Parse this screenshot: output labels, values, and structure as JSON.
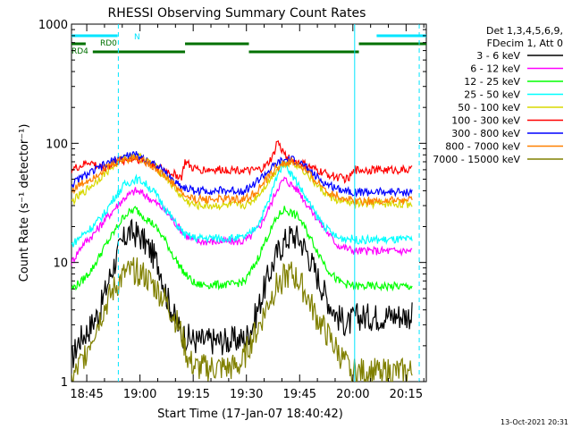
{
  "chart_data": {
    "type": "line",
    "title": "RHESSI Observing Summary Count Rates",
    "xlabel": "Start Time (17-Jan-07 18:40:42)",
    "ylabel": "Count Rate (s⁻¹ detector⁻¹)",
    "yscale": "log",
    "ylim": [
      1,
      1000
    ],
    "xlim_minutes": [
      0,
      100
    ],
    "x_tick_labels": [
      "18:45",
      "19:00",
      "19:15",
      "19:30",
      "19:45",
      "20:00",
      "20:15"
    ],
    "x_tick_minutes": [
      4.3,
      19.3,
      34.3,
      49.3,
      64.3,
      79.3,
      94.3
    ],
    "y_tick_labels": [
      "1",
      "10",
      "100",
      "1000"
    ],
    "y_tick_values": [
      1,
      10,
      100,
      1000
    ],
    "legend_header": [
      "Det 1,3,4,5,6,9,",
      "FDecim 1, Att 0"
    ],
    "legend_position": "right",
    "timestamp": "13-Oct-2021 20:31",
    "bar_labels": [
      "N",
      "RD0",
      "RD4"
    ],
    "bars": [
      {
        "label": "N",
        "color": "#00e5ff",
        "segments": [
          [
            0,
            13
          ],
          [
            86,
            100
          ]
        ]
      },
      {
        "label": "RD0",
        "color": "#007000",
        "segments": [
          [
            0,
            4
          ],
          [
            32,
            50
          ],
          [
            81,
            100
          ]
        ]
      },
      {
        "label": "RD4",
        "color": "#007000",
        "segments": [
          [
            6,
            32
          ],
          [
            50,
            81
          ]
        ]
      }
    ],
    "vlines_minutes": [
      13.2,
      79.8,
      98.0
    ],
    "series": [
      {
        "name": "3 - 6 keV",
        "color": "#000000",
        "points": [
          [
            0,
            1.5
          ],
          [
            2,
            2.2
          ],
          [
            5,
            2.8
          ],
          [
            8,
            4
          ],
          [
            11,
            8
          ],
          [
            14,
            14
          ],
          [
            16,
            18
          ],
          [
            19,
            17
          ],
          [
            22,
            13
          ],
          [
            25,
            9
          ],
          [
            27,
            5
          ],
          [
            29,
            3.5
          ],
          [
            31,
            2.5
          ],
          [
            35,
            2.2
          ],
          [
            40,
            2.2
          ],
          [
            45,
            2.2
          ],
          [
            49,
            2.3
          ],
          [
            51,
            3
          ],
          [
            53,
            4.5
          ],
          [
            55,
            7
          ],
          [
            58,
            12
          ],
          [
            60,
            15
          ],
          [
            62,
            17
          ],
          [
            64,
            16
          ],
          [
            66,
            13
          ],
          [
            69,
            8
          ],
          [
            72,
            5
          ],
          [
            75,
            3.5
          ],
          [
            78,
            3
          ],
          [
            80,
            3.5
          ],
          [
            85,
            3.5
          ],
          [
            90,
            3.6
          ],
          [
            96,
            3.6
          ]
        ]
      },
      {
        "name": "6 - 12 keV",
        "color": "#ff00ff",
        "points": [
          [
            0,
            10
          ],
          [
            3,
            14
          ],
          [
            6,
            17
          ],
          [
            9,
            22
          ],
          [
            12,
            28
          ],
          [
            15,
            35
          ],
          [
            18,
            40
          ],
          [
            20,
            38
          ],
          [
            23,
            33
          ],
          [
            26,
            28
          ],
          [
            29,
            22
          ],
          [
            32,
            17
          ],
          [
            35,
            15
          ],
          [
            40,
            15
          ],
          [
            45,
            15
          ],
          [
            48,
            15
          ],
          [
            50,
            16
          ],
          [
            53,
            20
          ],
          [
            56,
            30
          ],
          [
            58,
            42
          ],
          [
            60,
            50
          ],
          [
            62,
            45
          ],
          [
            64,
            40
          ],
          [
            66,
            32
          ],
          [
            69,
            24
          ],
          [
            72,
            18
          ],
          [
            75,
            14
          ],
          [
            78,
            13
          ],
          [
            80,
            12.5
          ],
          [
            85,
            12.5
          ],
          [
            90,
            12.5
          ],
          [
            96,
            12.5
          ]
        ]
      },
      {
        "name": "12 - 25 keV",
        "color": "#00ff00",
        "points": [
          [
            0,
            6
          ],
          [
            3,
            7
          ],
          [
            6,
            9
          ],
          [
            9,
            13
          ],
          [
            12,
            18
          ],
          [
            15,
            25
          ],
          [
            18,
            28
          ],
          [
            20,
            25
          ],
          [
            23,
            21
          ],
          [
            26,
            16
          ],
          [
            29,
            11
          ],
          [
            32,
            8
          ],
          [
            35,
            6.5
          ],
          [
            40,
            6.5
          ],
          [
            45,
            6.5
          ],
          [
            49,
            7
          ],
          [
            52,
            10
          ],
          [
            55,
            16
          ],
          [
            58,
            24
          ],
          [
            60,
            28
          ],
          [
            62,
            26
          ],
          [
            64,
            24
          ],
          [
            66,
            19
          ],
          [
            69,
            13
          ],
          [
            72,
            9
          ],
          [
            75,
            7
          ],
          [
            78,
            6.5
          ],
          [
            80,
            6.3
          ],
          [
            85,
            6.3
          ],
          [
            90,
            6.3
          ],
          [
            96,
            6.3
          ]
        ]
      },
      {
        "name": "25 - 50 keV",
        "color": "#00ffff",
        "points": [
          [
            0,
            14
          ],
          [
            3,
            17
          ],
          [
            6,
            20
          ],
          [
            9,
            25
          ],
          [
            12,
            35
          ],
          [
            15,
            45
          ],
          [
            18,
            50
          ],
          [
            20,
            48
          ],
          [
            23,
            40
          ],
          [
            26,
            30
          ],
          [
            29,
            22
          ],
          [
            32,
            17
          ],
          [
            35,
            16
          ],
          [
            40,
            16
          ],
          [
            45,
            16
          ],
          [
            48,
            16
          ],
          [
            50,
            17
          ],
          [
            53,
            22
          ],
          [
            56,
            35
          ],
          [
            58,
            55
          ],
          [
            60,
            70
          ],
          [
            62,
            55
          ],
          [
            64,
            45
          ],
          [
            66,
            35
          ],
          [
            69,
            25
          ],
          [
            72,
            19
          ],
          [
            75,
            16
          ],
          [
            78,
            16
          ],
          [
            80,
            15.5
          ],
          [
            85,
            15.5
          ],
          [
            90,
            15.5
          ],
          [
            96,
            15.5
          ]
        ]
      },
      {
        "name": "50 - 100 keV",
        "color": "#d8d800",
        "points": [
          [
            0,
            32
          ],
          [
            3,
            38
          ],
          [
            6,
            45
          ],
          [
            9,
            55
          ],
          [
            12,
            65
          ],
          [
            15,
            75
          ],
          [
            18,
            78
          ],
          [
            20,
            75
          ],
          [
            23,
            65
          ],
          [
            26,
            55
          ],
          [
            29,
            42
          ],
          [
            32,
            33
          ],
          [
            35,
            30
          ],
          [
            40,
            30
          ],
          [
            45,
            30
          ],
          [
            48,
            30
          ],
          [
            50,
            31
          ],
          [
            53,
            38
          ],
          [
            56,
            50
          ],
          [
            58,
            62
          ],
          [
            60,
            68
          ],
          [
            62,
            70
          ],
          [
            64,
            65
          ],
          [
            66,
            57
          ],
          [
            69,
            45
          ],
          [
            72,
            37
          ],
          [
            75,
            33
          ],
          [
            78,
            32
          ],
          [
            80,
            31
          ],
          [
            85,
            31
          ],
          [
            90,
            31
          ],
          [
            96,
            31
          ]
        ]
      },
      {
        "name": "100 - 300 keV",
        "color": "#ff0000",
        "points": [
          [
            0,
            60
          ],
          [
            3,
            65
          ],
          [
            5,
            70
          ],
          [
            7,
            65
          ],
          [
            9,
            62
          ],
          [
            11,
            66
          ],
          [
            13,
            70
          ],
          [
            15,
            72
          ],
          [
            18,
            75
          ],
          [
            20,
            72
          ],
          [
            23,
            66
          ],
          [
            26,
            60
          ],
          [
            29,
            55
          ],
          [
            31,
            52
          ],
          [
            32,
            70
          ],
          [
            34,
            62
          ],
          [
            36,
            60
          ],
          [
            40,
            60
          ],
          [
            45,
            60
          ],
          [
            48,
            60
          ],
          [
            50,
            58
          ],
          [
            53,
            60
          ],
          [
            55,
            65
          ],
          [
            57,
            80
          ],
          [
            58,
            105
          ],
          [
            59,
            90
          ],
          [
            61,
            75
          ],
          [
            63,
            70
          ],
          [
            65,
            68
          ],
          [
            67,
            63
          ],
          [
            70,
            58
          ],
          [
            73,
            54
          ],
          [
            75,
            52
          ],
          [
            78,
            50
          ],
          [
            80,
            60
          ],
          [
            85,
            60
          ],
          [
            90,
            60
          ],
          [
            96,
            60
          ]
        ]
      },
      {
        "name": "300 - 800 keV",
        "color": "#0000ff",
        "points": [
          [
            0,
            45
          ],
          [
            3,
            52
          ],
          [
            6,
            58
          ],
          [
            9,
            65
          ],
          [
            12,
            72
          ],
          [
            15,
            78
          ],
          [
            18,
            80
          ],
          [
            20,
            76
          ],
          [
            23,
            68
          ],
          [
            26,
            58
          ],
          [
            29,
            48
          ],
          [
            32,
            42
          ],
          [
            35,
            40
          ],
          [
            40,
            40
          ],
          [
            45,
            40
          ],
          [
            48,
            40
          ],
          [
            50,
            42
          ],
          [
            53,
            50
          ],
          [
            56,
            60
          ],
          [
            58,
            68
          ],
          [
            60,
            72
          ],
          [
            62,
            73
          ],
          [
            64,
            70
          ],
          [
            66,
            63
          ],
          [
            69,
            52
          ],
          [
            72,
            45
          ],
          [
            75,
            42
          ],
          [
            78,
            40
          ],
          [
            80,
            39
          ],
          [
            85,
            39
          ],
          [
            90,
            39
          ],
          [
            96,
            39
          ]
        ]
      },
      {
        "name": "800 - 7000 keV",
        "color": "#ff8000",
        "points": [
          [
            0,
            40
          ],
          [
            3,
            46
          ],
          [
            6,
            52
          ],
          [
            9,
            60
          ],
          [
            12,
            68
          ],
          [
            15,
            74
          ],
          [
            18,
            76
          ],
          [
            20,
            73
          ],
          [
            23,
            64
          ],
          [
            26,
            54
          ],
          [
            29,
            45
          ],
          [
            32,
            36
          ],
          [
            35,
            34
          ],
          [
            40,
            34
          ],
          [
            45,
            34
          ],
          [
            48,
            34
          ],
          [
            50,
            35
          ],
          [
            53,
            42
          ],
          [
            56,
            54
          ],
          [
            58,
            63
          ],
          [
            60,
            68
          ],
          [
            62,
            70
          ],
          [
            64,
            66
          ],
          [
            66,
            58
          ],
          [
            69,
            48
          ],
          [
            72,
            40
          ],
          [
            75,
            36
          ],
          [
            78,
            34
          ],
          [
            80,
            33
          ],
          [
            85,
            33
          ],
          [
            90,
            33
          ],
          [
            96,
            33
          ]
        ]
      },
      {
        "name": "7000 - 15000 keV",
        "color": "#808000",
        "points": [
          [
            0,
            1
          ],
          [
            3,
            1.5
          ],
          [
            6,
            2.5
          ],
          [
            9,
            4
          ],
          [
            12,
            6
          ],
          [
            15,
            8
          ],
          [
            18,
            8.5
          ],
          [
            20,
            8
          ],
          [
            23,
            6.5
          ],
          [
            26,
            5
          ],
          [
            29,
            3.5
          ],
          [
            31,
            2.5
          ],
          [
            33,
            1.5
          ],
          [
            35,
            1.3
          ],
          [
            40,
            1.3
          ],
          [
            45,
            1.3
          ],
          [
            48,
            1.4
          ],
          [
            50,
            2
          ],
          [
            53,
            3
          ],
          [
            56,
            5
          ],
          [
            58,
            6.5
          ],
          [
            60,
            7.5
          ],
          [
            62,
            8
          ],
          [
            64,
            7
          ],
          [
            66,
            5.5
          ],
          [
            69,
            3.5
          ],
          [
            72,
            2.5
          ],
          [
            75,
            1.8
          ],
          [
            78,
            1.3
          ],
          [
            80,
            1.2
          ],
          [
            85,
            1.2
          ],
          [
            90,
            1.2
          ],
          [
            96,
            1.2
          ]
        ]
      }
    ]
  }
}
